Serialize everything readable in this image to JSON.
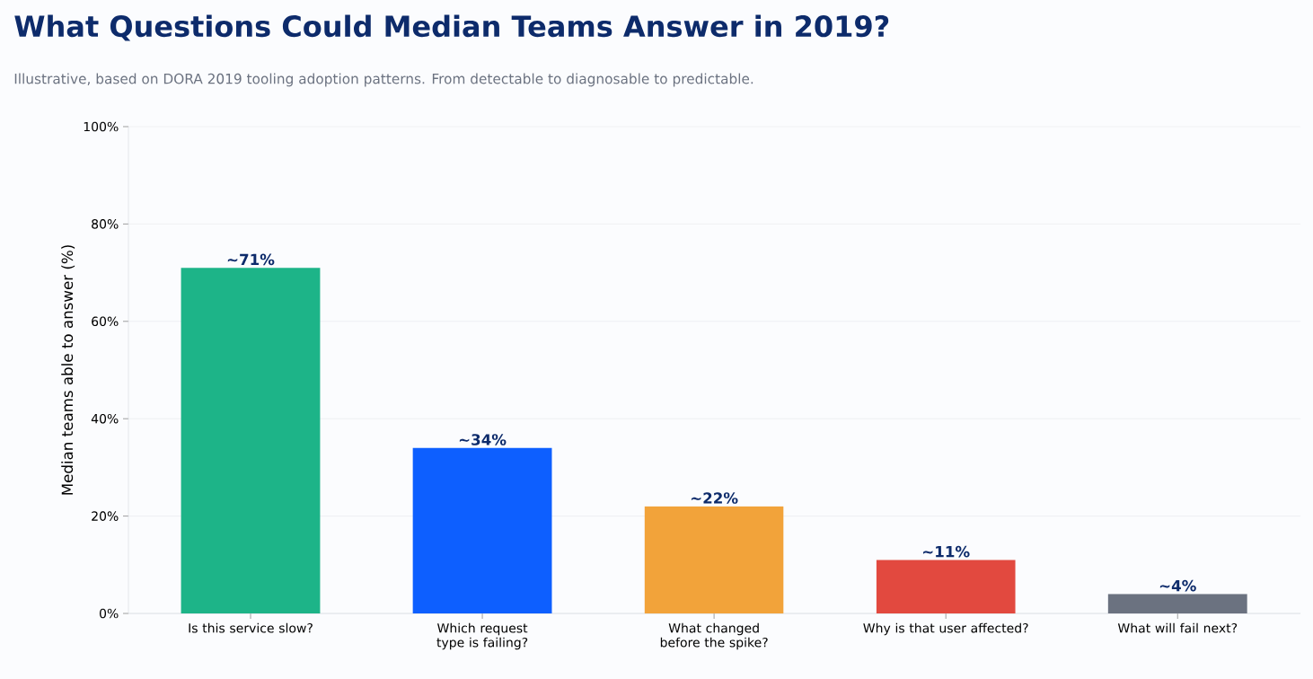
{
  "chart_data": {
    "type": "bar",
    "title": "What Questions Could Median Teams Answer in 2019?",
    "subtitle": "Illustrative, based on DORA 2019 tooling adoption patterns. From detectable to diagnosable to predictable.",
    "ylabel": "Median teams able to answer (%)",
    "categories": [
      "Is this service slow?",
      "Which request type is failing?",
      "What changed before the spike?",
      "Why is that user affected?",
      "What will fail next?"
    ],
    "values": [
      71,
      34,
      22,
      11,
      4
    ],
    "colors": [
      "#1db488",
      "#0d5fff",
      "#f2a33a",
      "#e2493f",
      "#6b7280"
    ],
    "value_labels": [
      "~71%",
      "~34%",
      "~22%",
      "~11%",
      "~4%"
    ],
    "ylim": [
      0,
      100
    ],
    "yticks": [
      {
        "value": 0,
        "label": "0%"
      },
      {
        "value": 20,
        "label": "20%"
      },
      {
        "value": 40,
        "label": "40%"
      },
      {
        "value": 60,
        "label": "60%"
      },
      {
        "value": 80,
        "label": "80%"
      },
      {
        "value": 100,
        "label": "100%"
      }
    ],
    "grid": "y"
  }
}
